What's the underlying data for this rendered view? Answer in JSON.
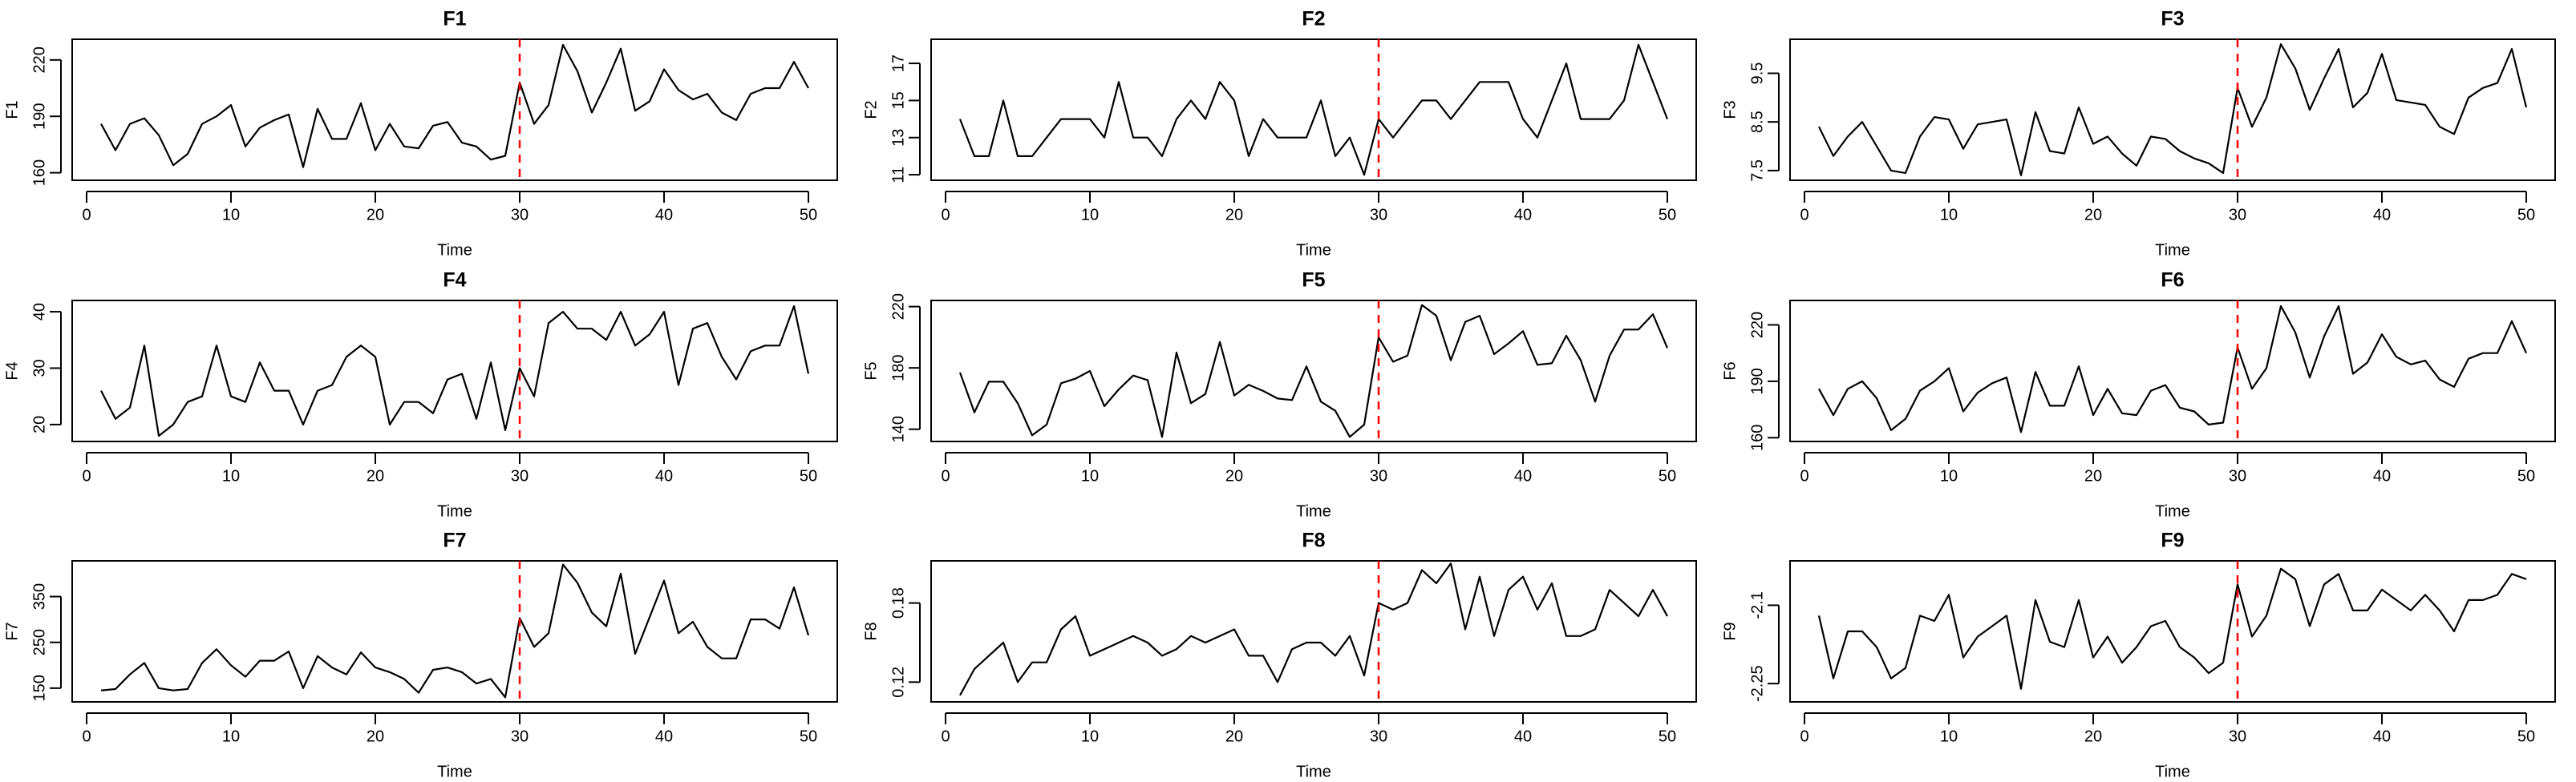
{
  "chart_data": [
    {
      "type": "line",
      "title": "F1",
      "xlabel": "Time",
      "ylabel": "F1",
      "color": "#000000",
      "vline": 30,
      "vline_color": "#ff0000",
      "x": [
        1,
        2,
        3,
        4,
        5,
        6,
        7,
        8,
        9,
        10,
        11,
        12,
        13,
        14,
        15,
        16,
        17,
        18,
        19,
        20,
        21,
        22,
        23,
        24,
        25,
        26,
        27,
        28,
        29,
        30,
        31,
        32,
        33,
        34,
        35,
        36,
        37,
        38,
        39,
        40,
        41,
        42,
        43,
        44,
        45,
        46,
        47,
        48,
        49,
        50
      ],
      "values": [
        186,
        172,
        186,
        189,
        180,
        164,
        170,
        186,
        190,
        196,
        174,
        184,
        188,
        191,
        163,
        194,
        178,
        178,
        197,
        172,
        186,
        174,
        173,
        185,
        187,
        176,
        174,
        167,
        169,
        208,
        186,
        196,
        228,
        214,
        192,
        208,
        226,
        193,
        198,
        215,
        204,
        199,
        202,
        192,
        188,
        202,
        205,
        205,
        219,
        205
      ],
      "xlim": [
        -1,
        52
      ],
      "xticks": [
        0,
        10,
        20,
        30,
        40,
        50
      ],
      "ylim": [
        156,
        231
      ],
      "yticks": [
        160,
        190,
        220
      ]
    },
    {
      "type": "line",
      "title": "F2",
      "xlabel": "Time",
      "ylabel": "F2",
      "color": "#000000",
      "vline": 30,
      "vline_color": "#ff0000",
      "x": [
        1,
        2,
        3,
        4,
        5,
        6,
        7,
        8,
        9,
        10,
        11,
        12,
        13,
        14,
        15,
        16,
        17,
        18,
        19,
        20,
        21,
        22,
        23,
        24,
        25,
        26,
        27,
        28,
        29,
        30,
        31,
        32,
        33,
        34,
        35,
        36,
        37,
        38,
        39,
        40,
        41,
        42,
        43,
        44,
        45,
        46,
        47,
        48,
        49,
        50
      ],
      "values": [
        14,
        12,
        12,
        15,
        12,
        12,
        13,
        14,
        14,
        14,
        13,
        16,
        13,
        13,
        12,
        14,
        15,
        14,
        16,
        15,
        12,
        14,
        13,
        13,
        13,
        15,
        12,
        13,
        11,
        14,
        13,
        14,
        15,
        15,
        14,
        15,
        16,
        16,
        16,
        14,
        13,
        15,
        17,
        14,
        14,
        14,
        15,
        18,
        16,
        14
      ],
      "xlim": [
        -1,
        52
      ],
      "xticks": [
        0,
        10,
        20,
        30,
        40,
        50
      ],
      "ylim": [
        10.7,
        18.3
      ],
      "yticks": [
        11,
        13,
        15,
        17
      ]
    },
    {
      "type": "line",
      "title": "F3",
      "xlabel": "Time",
      "ylabel": "F3",
      "color": "#000000",
      "vline": 30,
      "vline_color": "#ff0000",
      "x": [
        1,
        2,
        3,
        4,
        5,
        6,
        7,
        8,
        9,
        10,
        11,
        12,
        13,
        14,
        15,
        16,
        17,
        18,
        19,
        20,
        21,
        22,
        23,
        24,
        25,
        26,
        27,
        28,
        29,
        30,
        31,
        32,
        33,
        34,
        35,
        36,
        37,
        38,
        39,
        40,
        41,
        42,
        43,
        44,
        45,
        46,
        47,
        48,
        49,
        50
      ],
      "values": [
        8.4,
        7.8,
        8.2,
        8.5,
        8.0,
        7.5,
        7.45,
        8.2,
        8.6,
        8.55,
        7.95,
        8.45,
        8.5,
        8.55,
        7.4,
        8.7,
        7.9,
        7.85,
        8.8,
        8.05,
        8.2,
        7.85,
        7.6,
        8.2,
        8.15,
        7.9,
        7.75,
        7.65,
        7.45,
        9.2,
        8.4,
        9.0,
        10.1,
        9.6,
        8.75,
        9.4,
        10.0,
        8.8,
        9.1,
        9.9,
        8.95,
        8.9,
        8.85,
        8.4,
        8.25,
        9.0,
        9.2,
        9.3,
        10.0,
        8.8
      ],
      "xlim": [
        -1,
        52
      ],
      "xticks": [
        0,
        10,
        20,
        30,
        40,
        50
      ],
      "ylim": [
        7.3,
        10.2
      ],
      "yticks": [
        7.5,
        8.5,
        9.5
      ]
    },
    {
      "type": "line",
      "title": "F4",
      "xlabel": "Time",
      "ylabel": "F4",
      "color": "#000000",
      "vline": 30,
      "vline_color": "#ff0000",
      "x": [
        1,
        2,
        3,
        4,
        5,
        6,
        7,
        8,
        9,
        10,
        11,
        12,
        13,
        14,
        15,
        16,
        17,
        18,
        19,
        20,
        21,
        22,
        23,
        24,
        25,
        26,
        27,
        28,
        29,
        30,
        31,
        32,
        33,
        34,
        35,
        36,
        37,
        38,
        39,
        40,
        41,
        42,
        43,
        44,
        45,
        46,
        47,
        48,
        49,
        50
      ],
      "values": [
        26,
        21,
        23,
        34,
        18,
        20,
        24,
        25,
        34,
        25,
        24,
        31,
        26,
        26,
        20,
        26,
        27,
        32,
        34,
        32,
        20,
        24,
        24,
        22,
        28,
        29,
        21,
        31,
        19,
        30,
        25,
        38,
        40,
        37,
        37,
        35,
        40,
        34,
        36,
        40,
        27,
        37,
        38,
        32,
        28,
        33,
        34,
        34,
        41,
        29
      ],
      "xlim": [
        -1,
        52
      ],
      "xticks": [
        0,
        10,
        20,
        30,
        40,
        50
      ],
      "ylim": [
        17,
        42
      ],
      "yticks": [
        20,
        30,
        40
      ]
    },
    {
      "type": "line",
      "title": "F5",
      "xlabel": "Time",
      "ylabel": "F5",
      "color": "#000000",
      "vline": 30,
      "vline_color": "#ff0000",
      "x": [
        1,
        2,
        3,
        4,
        5,
        6,
        7,
        8,
        9,
        10,
        11,
        12,
        13,
        14,
        15,
        16,
        17,
        18,
        19,
        20,
        21,
        22,
        23,
        24,
        25,
        26,
        27,
        28,
        29,
        30,
        31,
        32,
        33,
        34,
        35,
        36,
        37,
        38,
        39,
        40,
        41,
        42,
        43,
        44,
        45,
        46,
        47,
        48,
        49,
        50
      ],
      "values": [
        177,
        151,
        171,
        171,
        157,
        136,
        143,
        170,
        173,
        178,
        155,
        166,
        175,
        172,
        135,
        190,
        157,
        163,
        197,
        162,
        169,
        165,
        160,
        159,
        181,
        158,
        152,
        135,
        143,
        200,
        184,
        188,
        221,
        214,
        185,
        210,
        214,
        189,
        196,
        204,
        182,
        183,
        201,
        185,
        158,
        188,
        205,
        205,
        215,
        193
      ],
      "xlim": [
        -1,
        52
      ],
      "xticks": [
        0,
        10,
        20,
        30,
        40,
        50
      ],
      "ylim": [
        132,
        224
      ],
      "yticks": [
        140,
        180,
        220
      ]
    },
    {
      "type": "line",
      "title": "F6",
      "xlabel": "Time",
      "ylabel": "F6",
      "color": "#000000",
      "vline": 30,
      "vline_color": "#ff0000",
      "x": [
        1,
        2,
        3,
        4,
        5,
        6,
        7,
        8,
        9,
        10,
        11,
        12,
        13,
        14,
        15,
        16,
        17,
        18,
        19,
        20,
        21,
        22,
        23,
        24,
        25,
        26,
        27,
        28,
        29,
        30,
        31,
        32,
        33,
        34,
        35,
        36,
        37,
        38,
        39,
        40,
        41,
        42,
        43,
        44,
        45,
        46,
        47,
        48,
        49,
        50
      ],
      "values": [
        186,
        172,
        186,
        190,
        181,
        164,
        170,
        185,
        190,
        197,
        174,
        184,
        189,
        192,
        163,
        195,
        177,
        177,
        198,
        172,
        186,
        173,
        172,
        185,
        188,
        176,
        174,
        167,
        168,
        208,
        186,
        197,
        230,
        216,
        192,
        214,
        230,
        194,
        200,
        215,
        203,
        199,
        201,
        191,
        187,
        202,
        205,
        205,
        222,
        205
      ],
      "xlim": [
        -1,
        52
      ],
      "xticks": [
        0,
        10,
        20,
        30,
        40,
        50
      ],
      "ylim": [
        158,
        233
      ],
      "yticks": [
        160,
        190,
        220
      ]
    },
    {
      "type": "line",
      "title": "F7",
      "xlabel": "Time",
      "ylabel": "F7",
      "color": "#000000",
      "vline": 30,
      "vline_color": "#ff0000",
      "x": [
        1,
        2,
        3,
        4,
        5,
        6,
        7,
        8,
        9,
        10,
        11,
        12,
        13,
        14,
        15,
        16,
        17,
        18,
        19,
        20,
        21,
        22,
        23,
        24,
        25,
        26,
        27,
        28,
        29,
        30,
        31,
        32,
        33,
        34,
        35,
        36,
        37,
        38,
        39,
        40,
        41,
        42,
        43,
        44,
        45,
        46,
        47,
        48,
        49,
        50
      ],
      "values": [
        145,
        148,
        180,
        205,
        150,
        145,
        148,
        205,
        235,
        200,
        175,
        210,
        210,
        230,
        150,
        220,
        195,
        180,
        228,
        195,
        185,
        170,
        140,
        190,
        195,
        185,
        160,
        170,
        130,
        303,
        240,
        270,
        420,
        380,
        315,
        285,
        400,
        225,
        305,
        385,
        270,
        295,
        240,
        215,
        215,
        300,
        300,
        280,
        370,
        265
      ],
      "xlim": [
        -1,
        52
      ],
      "xticks": [
        0,
        10,
        20,
        30,
        40,
        50
      ],
      "ylim": [
        120,
        428
      ],
      "yticks": [
        150,
        250,
        350
      ]
    },
    {
      "type": "line",
      "title": "F8",
      "xlabel": "Time",
      "ylabel": "F8",
      "color": "#000000",
      "vline": 30,
      "vline_color": "#ff0000",
      "x": [
        1,
        2,
        3,
        4,
        5,
        6,
        7,
        8,
        9,
        10,
        11,
        12,
        13,
        14,
        15,
        16,
        17,
        18,
        19,
        20,
        21,
        22,
        23,
        24,
        25,
        26,
        27,
        28,
        29,
        30,
        31,
        32,
        33,
        34,
        35,
        36,
        37,
        38,
        39,
        40,
        41,
        42,
        43,
        44,
        45,
        46,
        47,
        48,
        49,
        50
      ],
      "values": [
        0.11,
        0.13,
        0.14,
        0.15,
        0.12,
        0.135,
        0.135,
        0.16,
        0.17,
        0.14,
        0.145,
        0.15,
        0.155,
        0.15,
        0.14,
        0.145,
        0.155,
        0.15,
        0.155,
        0.16,
        0.14,
        0.14,
        0.12,
        0.145,
        0.15,
        0.15,
        0.14,
        0.155,
        0.125,
        0.18,
        0.175,
        0.18,
        0.205,
        0.195,
        0.21,
        0.16,
        0.2,
        0.155,
        0.19,
        0.2,
        0.175,
        0.195,
        0.155,
        0.155,
        0.16,
        0.19,
        0.18,
        0.17,
        0.19,
        0.17
      ],
      "xlim": [
        -1,
        52
      ],
      "xticks": [
        0,
        10,
        20,
        30,
        40,
        50
      ],
      "ylim": [
        0.105,
        0.212
      ],
      "yticks": [
        0.12,
        0.18
      ]
    },
    {
      "type": "line",
      "title": "F9",
      "xlabel": "Time",
      "ylabel": "F9",
      "color": "#000000",
      "vline": 30,
      "vline_color": "#ff0000",
      "x": [
        1,
        2,
        3,
        4,
        5,
        6,
        7,
        8,
        9,
        10,
        11,
        12,
        13,
        14,
        15,
        16,
        17,
        18,
        19,
        20,
        21,
        22,
        23,
        24,
        25,
        26,
        27,
        28,
        29,
        30,
        31,
        32,
        33,
        34,
        35,
        36,
        37,
        38,
        39,
        40,
        41,
        42,
        43,
        44,
        45,
        46,
        47,
        48,
        49,
        50
      ],
      "values": [
        -2.12,
        -2.24,
        -2.15,
        -2.15,
        -2.18,
        -2.24,
        -2.22,
        -2.12,
        -2.13,
        -2.08,
        -2.2,
        -2.16,
        -2.14,
        -2.12,
        -2.26,
        -2.09,
        -2.17,
        -2.18,
        -2.09,
        -2.2,
        -2.16,
        -2.21,
        -2.18,
        -2.14,
        -2.13,
        -2.18,
        -2.2,
        -2.23,
        -2.21,
        -2.06,
        -2.16,
        -2.12,
        -2.03,
        -2.05,
        -2.14,
        -2.06,
        -2.04,
        -2.11,
        -2.11,
        -2.07,
        -2.09,
        -2.11,
        -2.08,
        -2.11,
        -2.15,
        -2.09,
        -2.09,
        -2.08,
        -2.04,
        -2.05
      ],
      "xlim": [
        -1,
        52
      ],
      "xticks": [
        0,
        10,
        20,
        30,
        40,
        50
      ],
      "ylim": [
        -2.285,
        -2.015
      ],
      "yticks": [
        -2.25,
        -2.1
      ]
    }
  ]
}
